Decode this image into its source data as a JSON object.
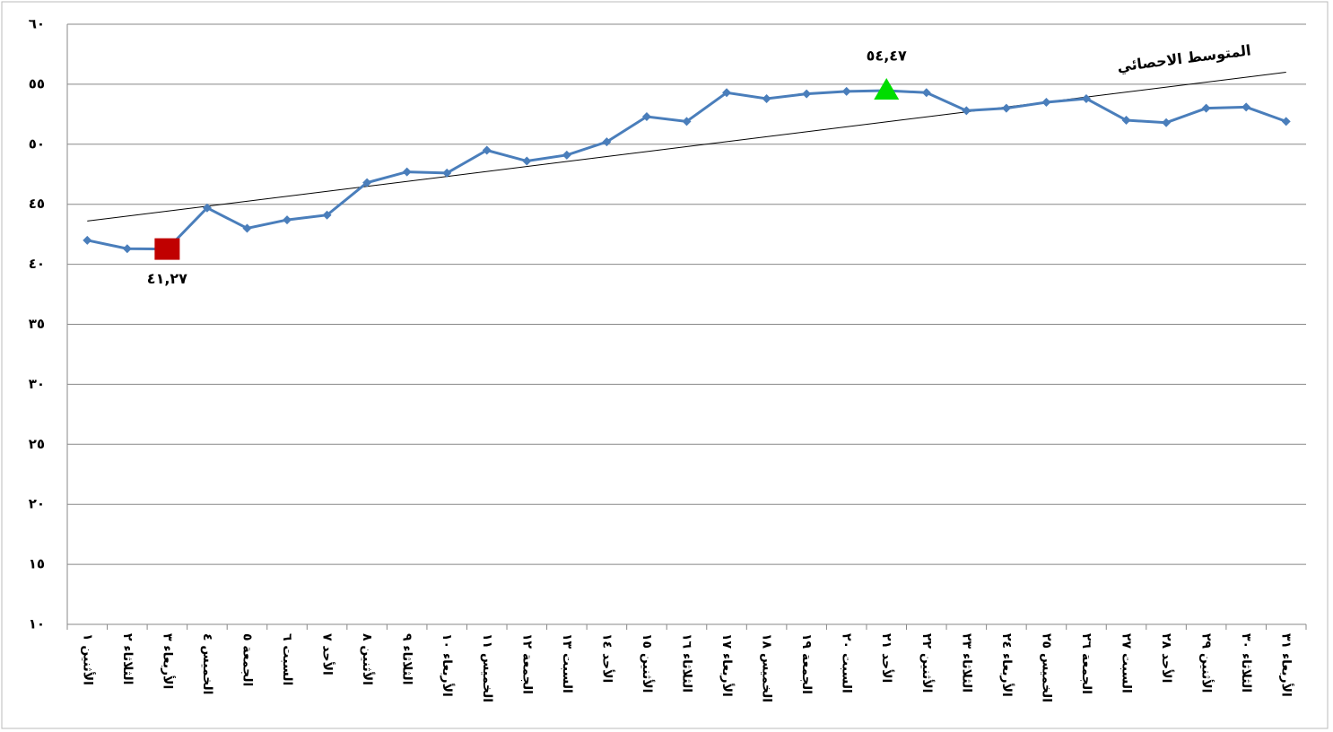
{
  "chart_data": {
    "type": "line",
    "categories": [
      "الأثنين ١",
      "الثلاثاء ٢",
      "الأربعاء ٣",
      "الخميس ٤",
      "الجمعة ٥",
      "السبت ٦",
      "الأحد ٧",
      "الأثنين ٨",
      "الثلاثاء ٩",
      "الأربعاء ١٠",
      "الخميس ١١",
      "الجمعة ١٢",
      "السبت ١٣",
      "الأحد ١٤",
      "الأثنين ١٥",
      "الثلاثاء ١٦",
      "الأربعاء ١٧",
      "الخميس ١٨",
      "الجمعة ١٩",
      "السبت ٢٠",
      "الأحد ٢١",
      "الأثنين ٢٢",
      "الثلاثاء ٢٣",
      "الأربعاء ٢٤",
      "الخميس ٢٥",
      "الجمعة ٢٦",
      "السبت ٢٧",
      "الأحد ٢٨",
      "الأثنين ٢٩",
      "الثلاثاء ٣٠",
      "الأربعاء ٣١"
    ],
    "values": [
      42.0,
      41.3,
      41.27,
      44.7,
      43.0,
      43.7,
      44.1,
      46.8,
      47.7,
      47.6,
      49.5,
      48.6,
      49.1,
      50.2,
      52.3,
      51.9,
      54.3,
      53.8,
      54.2,
      54.4,
      54.47,
      54.3,
      52.8,
      53.0,
      53.5,
      53.8,
      52.0,
      51.8,
      53.0,
      53.1,
      51.9
    ],
    "value_labels": [
      null,
      null,
      "٤١,٢٧",
      null,
      null,
      null,
      null,
      null,
      null,
      null,
      null,
      null,
      null,
      null,
      null,
      null,
      null,
      null,
      null,
      null,
      "٥٤,٤٧",
      null,
      null,
      null,
      null,
      null,
      null,
      null,
      null,
      null,
      null
    ],
    "color": "#4a7ebb",
    "highlights": [
      {
        "index": 2,
        "shape": "square",
        "color": "#c00000",
        "label_side": "below"
      },
      {
        "index": 20,
        "shape": "triangle",
        "color": "#00dd00",
        "label_side": "above"
      }
    ],
    "trend": {
      "name": "المتوسط الاحصائي",
      "values": [
        43.6,
        56.0
      ],
      "color": "#000000"
    },
    "ylim": [
      10,
      60
    ],
    "yticks": [
      {
        "value": 10,
        "label": "١٠"
      },
      {
        "value": 15,
        "label": "١٥"
      },
      {
        "value": 20,
        "label": "٢٠"
      },
      {
        "value": 25,
        "label": "٢٥"
      },
      {
        "value": 30,
        "label": "٣٠"
      },
      {
        "value": 35,
        "label": "٣٥"
      },
      {
        "value": 40,
        "label": "٤٠"
      },
      {
        "value": 45,
        "label": "٤٥"
      },
      {
        "value": 50,
        "label": "٥٠"
      },
      {
        "value": 55,
        "label": "٥٥"
      },
      {
        "value": 60,
        "label": "٦٠"
      }
    ],
    "grid": true
  }
}
